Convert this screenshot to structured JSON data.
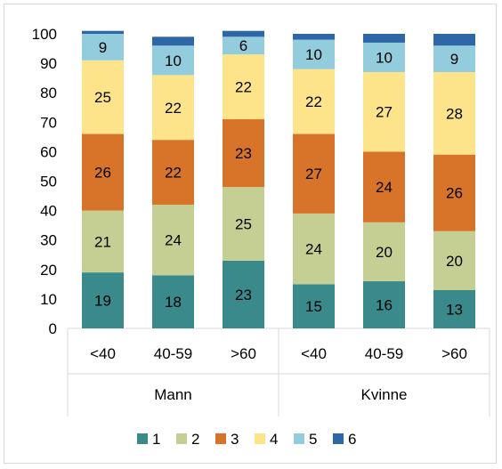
{
  "chart_data": {
    "type": "bar",
    "stacked": true,
    "groups": [
      {
        "name": "Mann",
        "categories": [
          "<40",
          "40-59",
          ">60"
        ]
      },
      {
        "name": "Kvinne",
        "categories": [
          "<40",
          "40-59",
          ">60"
        ]
      }
    ],
    "categories": [
      "<40",
      "40-59",
      ">60",
      "<40",
      "40-59",
      ">60"
    ],
    "series": [
      {
        "name": "1",
        "color": "#3a8a8c",
        "values": [
          19,
          18,
          23,
          15,
          16,
          13
        ],
        "labels": [
          "19",
          "18",
          "23",
          "15",
          "16",
          "13"
        ]
      },
      {
        "name": "2",
        "color": "#c6cf93",
        "values": [
          21,
          24,
          25,
          24,
          20,
          20
        ],
        "labels": [
          "21",
          "24",
          "25",
          "24",
          "20",
          "20"
        ]
      },
      {
        "name": "3",
        "color": "#d8742a",
        "values": [
          26,
          22,
          23,
          27,
          24,
          26
        ],
        "labels": [
          "26",
          "22",
          "23",
          "27",
          "24",
          "26"
        ]
      },
      {
        "name": "4",
        "color": "#fde38a",
        "values": [
          25,
          22,
          22,
          22,
          27,
          28
        ],
        "labels": [
          "25",
          "22",
          "22",
          "22",
          "27",
          "28"
        ]
      },
      {
        "name": "5",
        "color": "#93cddd",
        "values": [
          9,
          10,
          6,
          10,
          10,
          9
        ],
        "labels": [
          "9",
          "10",
          "6",
          "10",
          "10",
          "9"
        ]
      },
      {
        "name": "6",
        "color": "#2e67a8",
        "values": [
          1,
          3,
          2,
          2,
          3,
          4
        ],
        "labels": [
          "",
          "",
          "",
          "",
          "",
          ""
        ]
      }
    ],
    "yticks": [
      "0",
      "10",
      "20",
      "30",
      "40",
      "50",
      "60",
      "70",
      "80",
      "90",
      "100"
    ],
    "ylim": [
      0,
      100
    ],
    "grid": false,
    "legend_position": "bottom"
  }
}
